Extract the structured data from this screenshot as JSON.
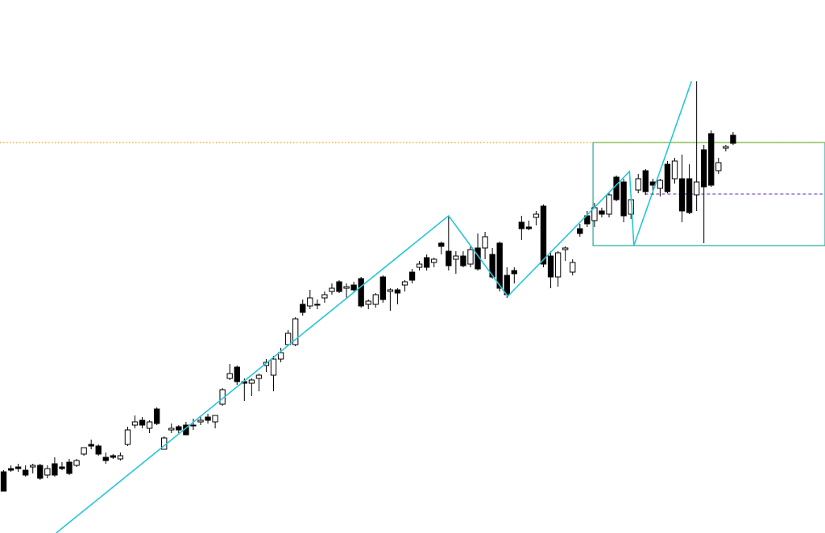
{
  "chart_data": {
    "type": "candlestick",
    "xlim": [
      -0.5,
      112.6
    ],
    "ylim": [
      0,
      662
    ],
    "up_color": "#ffffff",
    "down_color": "#000000",
    "edge_color": "#000000",
    "open": [
      76,
      80,
      82,
      78,
      82,
      84,
      72,
      86,
      82,
      88,
      84,
      98,
      110,
      108,
      94,
      96,
      92,
      110,
      134,
      140,
      130,
      154,
      104,
      128,
      132,
      134,
      134,
      138,
      144,
      138,
      160,
      192,
      206,
      188,
      186,
      192,
      208,
      196,
      216,
      234,
      234,
      284,
      282,
      284,
      292,
      300,
      312,
      304,
      308,
      316,
      284,
      284,
      318,
      300,
      302,
      308,
      324,
      330,
      342,
      336,
      360,
      350,
      340,
      344,
      334,
      354,
      354,
      346,
      360,
      320,
      326,
      386,
      380,
      392,
      406,
      344,
      318,
      352,
      324,
      378,
      394,
      388,
      400,
      396,
      442,
      436,
      396,
      426,
      450,
      436,
      428,
      458,
      440,
      440,
      440,
      420,
      476,
      496,
      450,
      478,
      494
    ],
    "high": [
      78,
      84,
      86,
      84,
      86,
      86,
      84,
      94,
      88,
      92,
      92,
      106,
      116,
      110,
      100,
      98,
      100,
      132,
      146,
      144,
      140,
      156,
      120,
      136,
      134,
      138,
      142,
      146,
      148,
      146,
      180,
      210,
      208,
      192,
      192,
      198,
      216,
      220,
      230,
      252,
      268,
      290,
      302,
      290,
      300,
      310,
      314,
      310,
      312,
      318,
      290,
      298,
      320,
      304,
      304,
      314,
      328,
      338,
      346,
      342,
      362,
      394,
      350,
      350,
      356,
      372,
      374,
      354,
      362,
      330,
      330,
      394,
      388,
      400,
      408,
      350,
      350,
      356,
      340,
      384,
      400,
      410,
      404,
      424,
      444,
      440,
      420,
      446,
      452,
      440,
      440,
      462,
      466,
      470,
      458,
      561,
      482,
      500,
      466,
      482,
      498
    ],
    "low": [
      52,
      76,
      76,
      70,
      74,
      66,
      68,
      70,
      78,
      72,
      82,
      96,
      104,
      96,
      86,
      92,
      90,
      108,
      130,
      130,
      124,
      134,
      104,
      124,
      124,
      122,
      128,
      134,
      136,
      130,
      158,
      190,
      184,
      164,
      170,
      176,
      200,
      176,
      212,
      232,
      232,
      270,
      278,
      278,
      286,
      296,
      298,
      292,
      300,
      280,
      278,
      280,
      286,
      276,
      284,
      300,
      310,
      326,
      326,
      330,
      346,
      326,
      322,
      330,
      330,
      326,
      340,
      316,
      300,
      292,
      310,
      364,
      376,
      382,
      330,
      304,
      306,
      338,
      320,
      368,
      380,
      380,
      392,
      392,
      412,
      386,
      390,
      422,
      420,
      420,
      418,
      422,
      434,
      386,
      396,
      400,
      360,
      430,
      446,
      474,
      482
    ],
    "close": [
      52,
      78,
      80,
      72,
      84,
      68,
      80,
      72,
      80,
      74,
      90,
      106,
      108,
      98,
      90,
      94,
      96,
      128,
      138,
      134,
      138,
      136,
      118,
      130,
      128,
      122,
      134,
      140,
      140,
      146,
      178,
      198,
      188,
      186,
      190,
      196,
      212,
      216,
      224,
      248,
      266,
      274,
      292,
      284,
      296,
      304,
      300,
      306,
      302,
      282,
      288,
      296,
      290,
      302,
      298,
      312,
      314,
      334,
      330,
      340,
      356,
      332,
      344,
      332,
      352,
      328,
      368,
      318,
      304,
      296,
      322,
      378,
      378,
      396,
      334,
      318,
      348,
      354,
      336,
      372,
      384,
      404,
      396,
      420,
      414,
      394,
      414,
      440,
      424,
      432,
      438,
      424,
      462,
      400,
      398,
      436,
      430,
      432,
      460,
      480,
      484
    ],
    "zigzag": {
      "color": "#26c6da",
      "x": [
        7.2,
        61,
        69.1,
        85.8,
        86.4,
        94.3
      ],
      "values": [
        0,
        394,
        294,
        449,
        357,
        561
      ]
    },
    "levels": [
      {
        "value": 485,
        "color": "#ff9800",
        "style": "dotted",
        "x_start": -0.5
      },
      {
        "value": 421,
        "color": "#7e57c2",
        "style": "dashed",
        "x_start": 87.9
      }
    ],
    "box": {
      "x": [
        80.8,
        112.6
      ],
      "values": [
        357,
        485
      ],
      "color": "#26a69a",
      "top_color": "#8bc34a"
    }
  }
}
